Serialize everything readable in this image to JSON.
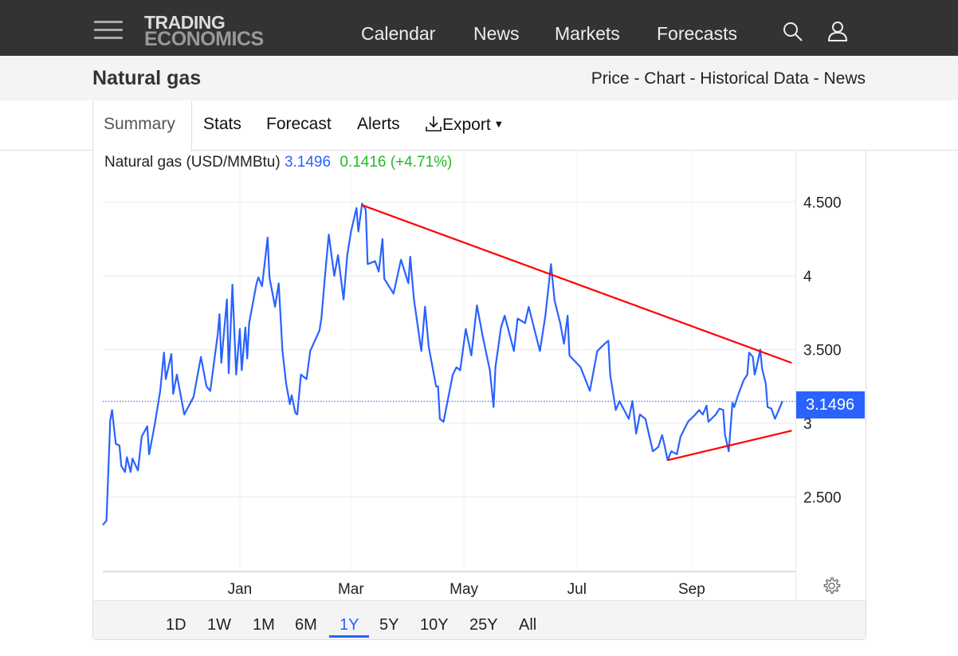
{
  "header": {
    "logo_line1": "TRADING",
    "logo_line2": "ECONOMICS",
    "nav": [
      "Calendar",
      "News",
      "Markets",
      "Forecasts"
    ],
    "icons": [
      "menu-icon",
      "search-icon",
      "user-icon"
    ]
  },
  "subheader": {
    "title": "Natural gas",
    "links": "Price - Chart - Historical Data - News"
  },
  "tabs": [
    "Summary",
    "Stats",
    "Forecast",
    "Alerts",
    "Export"
  ],
  "active_tab": "Summary",
  "legend": {
    "name": "Natural gas (USD/MMBtu)",
    "price": "3.1496",
    "change": "0.1416 (+4.71%)"
  },
  "price_label": "3.1496",
  "ranges": [
    "1D",
    "1W",
    "1M",
    "6M",
    "1Y",
    "5Y",
    "10Y",
    "25Y",
    "All"
  ],
  "active_range": "1Y",
  "colors": {
    "line": "#2962ff",
    "trend": "#ff0000",
    "up": "#22bb22",
    "header": "#333333"
  },
  "chart_data": {
    "type": "line",
    "title": "",
    "xlim": [
      "2023-10-19",
      "2024-10-27"
    ],
    "ylim": [
      2.0,
      4.79
    ],
    "grid": true,
    "y_axis_position": "right",
    "x_ticks": [
      {
        "date": "2024-01-01",
        "label": "Jan"
      },
      {
        "date": "2024-03-01",
        "label": "Mar"
      },
      {
        "date": "2024-05-01",
        "label": "May"
      },
      {
        "date": "2024-07-01",
        "label": "Jul"
      },
      {
        "date": "2024-09-01",
        "label": "Sep"
      }
    ],
    "y_ticks": [
      {
        "value": 2.5,
        "label": "2.500"
      },
      {
        "value": 3,
        "label": "3"
      },
      {
        "value": 3.5,
        "label": "3.500"
      },
      {
        "value": 4,
        "label": "4"
      },
      {
        "value": 4.5,
        "label": "4.500"
      }
    ],
    "last_value": 3.1496,
    "series": [
      {
        "values": [
          [
            "2023-10-19",
            2.31
          ],
          [
            "2023-10-21",
            2.34
          ],
          [
            "2023-10-23",
            3.02
          ],
          [
            "2023-10-24",
            3.09
          ],
          [
            "2023-10-26",
            2.86
          ],
          [
            "2023-10-28",
            2.85
          ],
          [
            "2023-10-29",
            2.71
          ],
          [
            "2023-10-31",
            2.67
          ],
          [
            "2023-11-01",
            2.77
          ],
          [
            "2023-11-03",
            2.67
          ],
          [
            "2023-11-04",
            2.76
          ],
          [
            "2023-11-07",
            2.68
          ],
          [
            "2023-11-09",
            2.91
          ],
          [
            "2023-11-12",
            2.98
          ],
          [
            "2023-11-13",
            2.79
          ],
          [
            "2023-11-16",
            2.99
          ],
          [
            "2023-11-19",
            3.22
          ],
          [
            "2023-11-21",
            3.48
          ],
          [
            "2023-11-22",
            3.3
          ],
          [
            "2023-11-25",
            3.47
          ],
          [
            "2023-11-26",
            3.2
          ],
          [
            "2023-11-28",
            3.33
          ],
          [
            "2023-12-02",
            3.06
          ],
          [
            "2023-12-07",
            3.18
          ],
          [
            "2023-12-11",
            3.45
          ],
          [
            "2023-12-14",
            3.25
          ],
          [
            "2023-12-16",
            3.22
          ],
          [
            "2023-12-20",
            3.6
          ],
          [
            "2023-12-21",
            3.74
          ],
          [
            "2023-12-22",
            3.41
          ],
          [
            "2023-12-25",
            3.84
          ],
          [
            "2023-12-26",
            3.34
          ],
          [
            "2023-12-28",
            3.94
          ],
          [
            "2023-12-30",
            3.33
          ],
          [
            "2024-01-01",
            3.64
          ],
          [
            "2024-01-02",
            3.36
          ],
          [
            "2024-01-04",
            3.65
          ],
          [
            "2024-01-05",
            3.44
          ],
          [
            "2024-01-06",
            3.68
          ],
          [
            "2024-01-10",
            3.95
          ],
          [
            "2024-01-11",
            3.99
          ],
          [
            "2024-01-13",
            3.93
          ],
          [
            "2024-01-16",
            4.26
          ],
          [
            "2024-01-17",
            3.99
          ],
          [
            "2024-01-20",
            3.79
          ],
          [
            "2024-01-22",
            3.95
          ],
          [
            "2024-01-24",
            3.49
          ],
          [
            "2024-01-26",
            3.27
          ],
          [
            "2024-01-28",
            3.13
          ],
          [
            "2024-01-29",
            3.19
          ],
          [
            "2024-01-31",
            3.07
          ],
          [
            "2024-02-01",
            3.06
          ],
          [
            "2024-02-03",
            3.33
          ],
          [
            "2024-02-06",
            3.3
          ],
          [
            "2024-02-08",
            3.49
          ],
          [
            "2024-02-13",
            3.63
          ],
          [
            "2024-02-14",
            3.71
          ],
          [
            "2024-02-16",
            4.0
          ],
          [
            "2024-02-18",
            4.28
          ],
          [
            "2024-02-21",
            4.0
          ],
          [
            "2024-02-23",
            4.14
          ],
          [
            "2024-02-26",
            3.84
          ],
          [
            "2024-02-28",
            4.14
          ],
          [
            "2024-03-01",
            4.3
          ],
          [
            "2024-03-04",
            4.46
          ],
          [
            "2024-03-05",
            4.3
          ],
          [
            "2024-03-07",
            4.49
          ],
          [
            "2024-03-09",
            4.45
          ],
          [
            "2024-03-10",
            4.08
          ],
          [
            "2024-03-14",
            4.1
          ],
          [
            "2024-03-16",
            4.03
          ],
          [
            "2024-03-18",
            4.25
          ],
          [
            "2024-03-19",
            3.98
          ],
          [
            "2024-03-24",
            3.88
          ],
          [
            "2024-03-28",
            4.11
          ],
          [
            "2024-04-01",
            3.95
          ],
          [
            "2024-04-02",
            4.13
          ],
          [
            "2024-04-04",
            3.84
          ],
          [
            "2024-04-08",
            3.49
          ],
          [
            "2024-04-10",
            3.79
          ],
          [
            "2024-04-12",
            3.52
          ],
          [
            "2024-04-16",
            3.25
          ],
          [
            "2024-04-17",
            3.25
          ],
          [
            "2024-04-18",
            3.03
          ],
          [
            "2024-04-20",
            3.01
          ],
          [
            "2024-04-22",
            3.14
          ],
          [
            "2024-04-25",
            3.33
          ],
          [
            "2024-04-27",
            3.38
          ],
          [
            "2024-04-29",
            3.36
          ],
          [
            "2024-05-02",
            3.64
          ],
          [
            "2024-05-05",
            3.46
          ],
          [
            "2024-05-08",
            3.8
          ],
          [
            "2024-05-11",
            3.6
          ],
          [
            "2024-05-15",
            3.36
          ],
          [
            "2024-05-17",
            3.11
          ],
          [
            "2024-05-18",
            3.38
          ],
          [
            "2024-05-21",
            3.65
          ],
          [
            "2024-05-23",
            3.73
          ],
          [
            "2024-05-28",
            3.49
          ],
          [
            "2024-05-30",
            3.71
          ],
          [
            "2024-06-03",
            3.68
          ],
          [
            "2024-06-05",
            3.79
          ],
          [
            "2024-06-11",
            3.49
          ],
          [
            "2024-06-14",
            3.73
          ],
          [
            "2024-06-17",
            4.08
          ],
          [
            "2024-06-19",
            3.83
          ],
          [
            "2024-06-22",
            3.68
          ],
          [
            "2024-06-24",
            3.54
          ],
          [
            "2024-06-26",
            3.73
          ],
          [
            "2024-06-27",
            3.46
          ],
          [
            "2024-07-03",
            3.38
          ],
          [
            "2024-07-08",
            3.22
          ],
          [
            "2024-07-12",
            3.49
          ],
          [
            "2024-07-16",
            3.54
          ],
          [
            "2024-07-18",
            3.56
          ],
          [
            "2024-07-19",
            3.33
          ],
          [
            "2024-07-22",
            3.09
          ],
          [
            "2024-07-24",
            3.15
          ],
          [
            "2024-07-29",
            3.03
          ],
          [
            "2024-07-31",
            3.15
          ],
          [
            "2024-08-02",
            2.93
          ],
          [
            "2024-08-04",
            3.06
          ],
          [
            "2024-08-07",
            3.03
          ],
          [
            "2024-08-11",
            2.81
          ],
          [
            "2024-08-14",
            2.84
          ],
          [
            "2024-08-16",
            2.92
          ],
          [
            "2024-08-17",
            2.87
          ],
          [
            "2024-08-19",
            2.75
          ],
          [
            "2024-08-21",
            2.81
          ],
          [
            "2024-08-24",
            2.79
          ],
          [
            "2024-08-26",
            2.91
          ],
          [
            "2024-08-30",
            3.01
          ],
          [
            "2024-09-03",
            3.06
          ],
          [
            "2024-09-05",
            3.09
          ],
          [
            "2024-09-07",
            3.06
          ],
          [
            "2024-09-09",
            3.12
          ],
          [
            "2024-09-10",
            3.01
          ],
          [
            "2024-09-14",
            3.06
          ],
          [
            "2024-09-16",
            3.1
          ],
          [
            "2024-09-18",
            3.09
          ],
          [
            "2024-09-19",
            2.92
          ],
          [
            "2024-09-21",
            2.81
          ],
          [
            "2024-09-23",
            3.14
          ],
          [
            "2024-09-24",
            3.11
          ],
          [
            "2024-09-26",
            3.19
          ],
          [
            "2024-09-29",
            3.29
          ],
          [
            "2024-10-01",
            3.33
          ],
          [
            "2024-10-02",
            3.48
          ],
          [
            "2024-10-04",
            3.45
          ],
          [
            "2024-10-05",
            3.33
          ],
          [
            "2024-10-06",
            3.38
          ],
          [
            "2024-10-08",
            3.5
          ],
          [
            "2024-10-09",
            3.37
          ],
          [
            "2024-10-11",
            3.27
          ],
          [
            "2024-10-12",
            3.11
          ],
          [
            "2024-10-14",
            3.1
          ],
          [
            "2024-10-16",
            3.03
          ],
          [
            "2024-10-18",
            3.09
          ],
          [
            "2024-10-20",
            3.15
          ]
        ]
      }
    ],
    "trendlines": [
      {
        "from": [
          "2024-03-07",
          4.48
        ],
        "to": [
          "2024-10-25",
          3.41
        ]
      },
      {
        "from": [
          "2024-08-19",
          2.75
        ],
        "to": [
          "2024-10-25",
          2.95
        ]
      }
    ]
  }
}
